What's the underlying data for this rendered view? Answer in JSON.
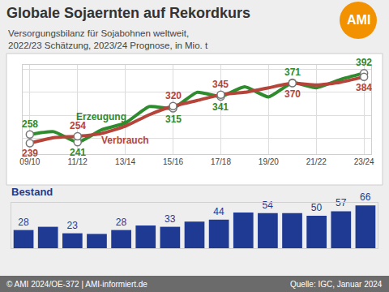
{
  "logo": "AMI",
  "footer": {
    "left": "© AMI 2024/OE-372 | AMI-informiert.de",
    "right": "Quelle: IGC, Januar 2024"
  },
  "chart_data": [
    {
      "type": "line",
      "title": "Globale Sojaernten auf Rekordkurs",
      "subtitle": [
        "Versorgungsbilanz für Sojabohnen weltweit,",
        "2022/23 Schätzung, 2023/24 Prognose, in Mio. t"
      ],
      "categories": [
        "09/10",
        null,
        "11/12",
        null,
        "13/14",
        null,
        "15/16",
        null,
        "17/18",
        null,
        "19/20",
        null,
        "21/22",
        null,
        "23/24"
      ],
      "series": [
        {
          "name": "Erzeugung",
          "color": "#2e8b2e",
          "values": [
            258,
            264,
            241,
            268,
            283,
            319,
            315,
            350,
            341,
            362,
            340,
            371,
            360,
            378,
            392
          ],
          "value_labels": [
            "258",
            null,
            "241",
            null,
            null,
            null,
            "315",
            null,
            "341",
            null,
            null,
            "371",
            null,
            null,
            "392"
          ]
        },
        {
          "name": "Verbrauch",
          "color": "#b5453a",
          "values": [
            239,
            251,
            254,
            260,
            276,
            301,
            320,
            332,
            345,
            350,
            360,
            370,
            366,
            372,
            384
          ],
          "value_labels": [
            "239",
            null,
            "254",
            null,
            null,
            null,
            "320",
            null,
            "345",
            null,
            null,
            "370",
            null,
            null,
            "384"
          ]
        }
      ],
      "ylim": [
        215,
        410
      ],
      "yticks": [
        250,
        300,
        350,
        400
      ],
      "grid": true,
      "tick_labels": "x",
      "data_labels": true,
      "marker": "circle",
      "line_style": "solid"
    },
    {
      "type": "bar",
      "title": "Bestand",
      "categories": [
        "09/10",
        null,
        "11/12",
        null,
        "13/14",
        null,
        "15/16",
        null,
        "17/18",
        null,
        "19/20",
        null,
        "21/22",
        null,
        "23/24"
      ],
      "values": [
        28,
        33,
        23,
        22,
        28,
        35,
        33,
        41,
        44,
        55,
        54,
        54,
        50,
        57,
        66
      ],
      "value_labels": [
        "28",
        null,
        "23",
        null,
        "28",
        null,
        "33",
        null,
        "44",
        null,
        "54",
        null,
        "50",
        "57",
        "66"
      ],
      "color": "#1f3a93",
      "ylim": [
        0,
        70
      ],
      "yticks": [],
      "grid": false,
      "tick_labels": false,
      "data_labels": true
    }
  ]
}
